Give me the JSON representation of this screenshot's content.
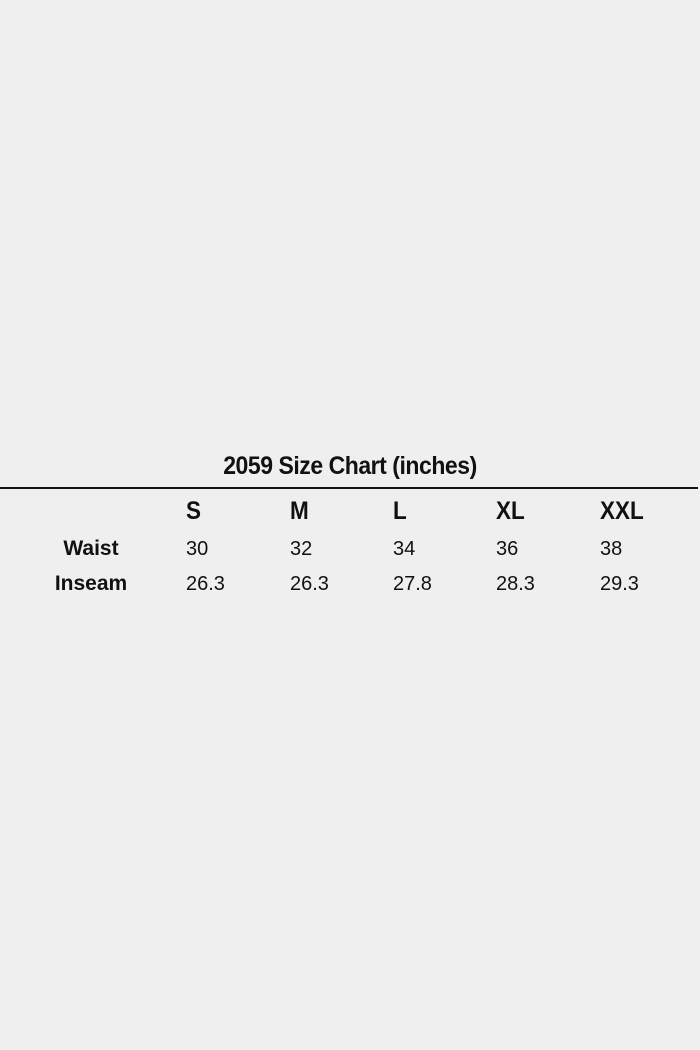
{
  "title": "2059 Size Chart (inches)",
  "table": {
    "columns": [
      "S",
      "M",
      "L",
      "XL",
      "XXL"
    ],
    "rows": [
      {
        "label": "Waist",
        "values": [
          "30",
          "32",
          "34",
          "36",
          "38"
        ]
      },
      {
        "label": "Inseam",
        "values": [
          "26.3",
          "26.3",
          "27.8",
          "28.3",
          "29.3"
        ]
      }
    ]
  },
  "colors": {
    "background": "#efefef",
    "text": "#111111"
  }
}
